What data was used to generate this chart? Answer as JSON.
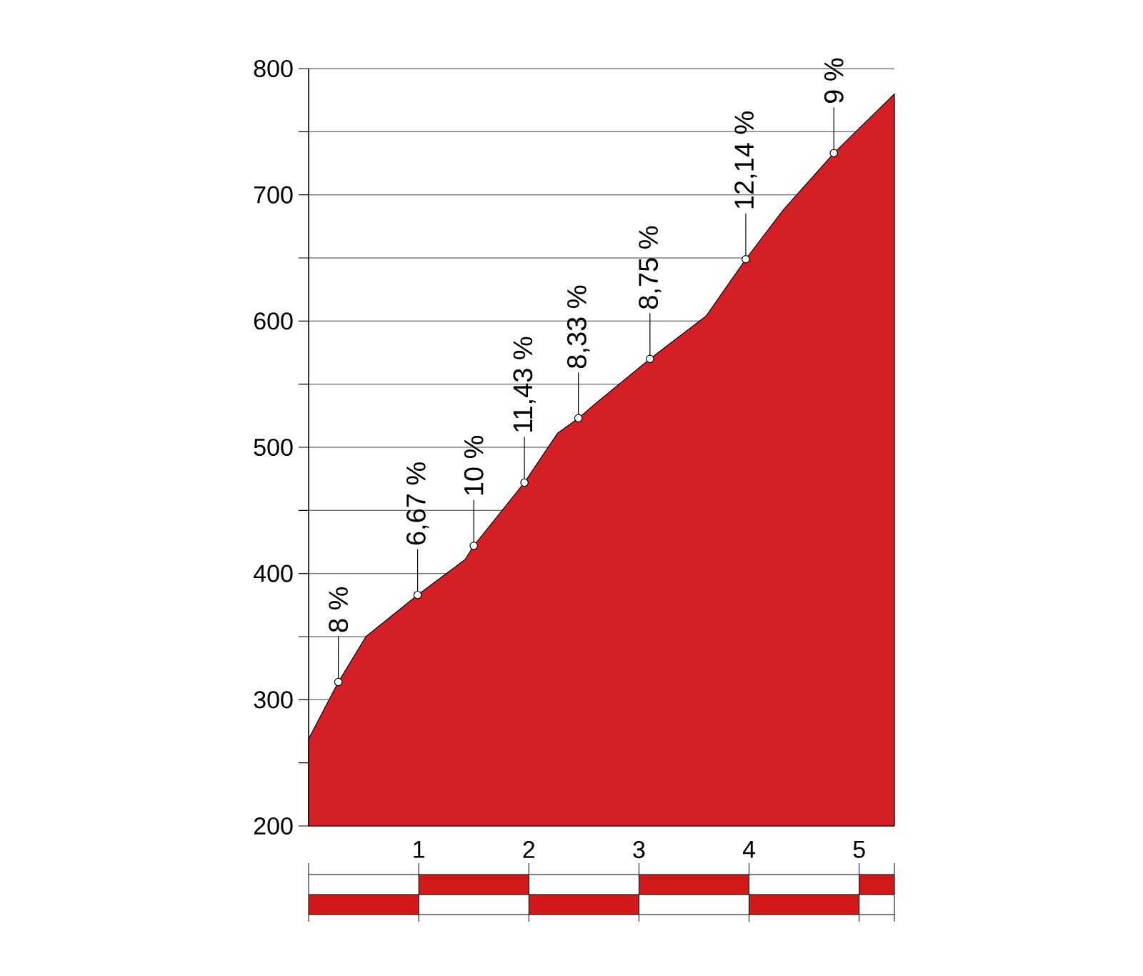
{
  "chart_data": {
    "type": "area",
    "x": [
      0,
      0.27,
      0.52,
      0.99,
      1.42,
      1.5,
      1.96,
      2.26,
      2.45,
      2.61,
      3.1,
      3.61,
      3.97,
      4.31,
      4.77,
      5.32
    ],
    "values": [
      269,
      314,
      350,
      383,
      411,
      422,
      472,
      511,
      523,
      535,
      570,
      604,
      649,
      688,
      733,
      780
    ],
    "color": "#d41f26",
    "xlim": [
      0,
      5.32
    ],
    "xticks": [
      1,
      2,
      3,
      4,
      5
    ],
    "ylim": [
      200,
      800
    ],
    "yticks": [
      200,
      {
        "value": 250,
        "label": null
      },
      300,
      {
        "value": 350,
        "label": null
      },
      400,
      {
        "value": 450,
        "label": null
      },
      500,
      {
        "value": 550,
        "label": null
      },
      600,
      {
        "value": 650,
        "label": null
      },
      700,
      {
        "value": 750,
        "label": null
      },
      800
    ],
    "grid": "y",
    "annotations": [
      {
        "text": "8 %",
        "x": 0.27,
        "y": 314
      },
      {
        "text": "6,67 %",
        "x": 0.99,
        "y": 383
      },
      {
        "text": "10 %",
        "x": 1.5,
        "y": 422
      },
      {
        "text": "11,43 %",
        "x": 1.96,
        "y": 472
      },
      {
        "text": "8,33 %",
        "x": 2.45,
        "y": 523
      },
      {
        "text": "8,75 %",
        "x": 3.1,
        "y": 570
      },
      {
        "text": "12,14 %",
        "x": 3.97,
        "y": 649
      },
      {
        "text": "9 %",
        "x": 4.77,
        "y": 733
      }
    ]
  }
}
